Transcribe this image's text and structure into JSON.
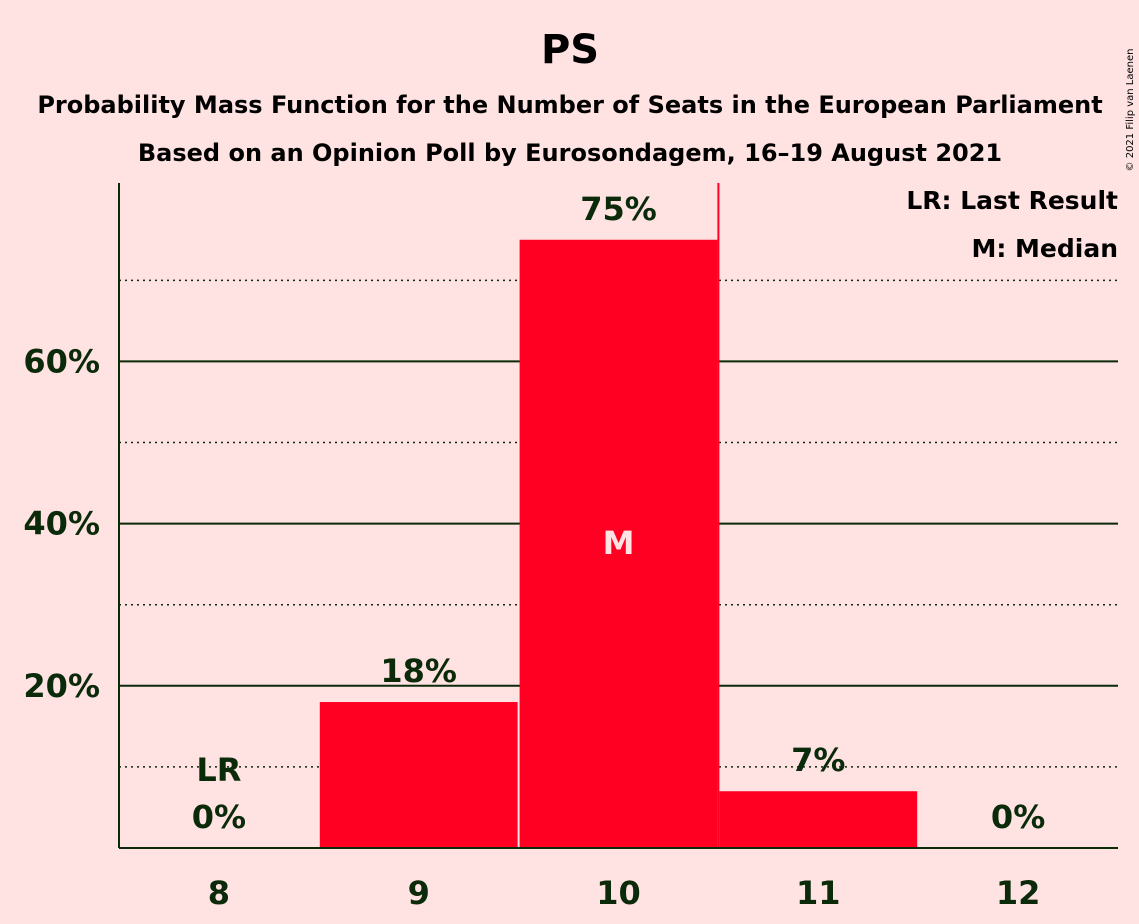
{
  "chart_data": {
    "type": "bar",
    "title": "PS",
    "subtitle_lines": [
      "Probability Mass Function for the Number of Seats in the European Parliament",
      "Based on an Opinion Poll by Eurosondagem, 16–19 August 2021"
    ],
    "categories": [
      "8",
      "9",
      "10",
      "11",
      "12"
    ],
    "values": [
      0,
      18,
      75,
      7,
      0
    ],
    "value_labels": [
      "0%",
      "18%",
      "75%",
      "7%",
      "0%"
    ],
    "ylim": [
      0,
      82
    ],
    "y_ticks_major": [
      20,
      40,
      60
    ],
    "y_tick_labels": [
      "20%",
      "40%",
      "60%"
    ],
    "y_ticks_minor": [
      10,
      30,
      50,
      70
    ],
    "grid": true,
    "last_result": {
      "category": "8",
      "label": "LR"
    },
    "median": {
      "category": "10",
      "label": "M"
    },
    "legend": [
      "LR: Last Result",
      "M: Median"
    ],
    "legend_position": "top-right",
    "copyright": "© 2021 Filip van Laenen",
    "colors": {
      "background": "#ffe2e2",
      "bar": "#ff0022",
      "text": "#0a2a0a",
      "median_text": "#ffe2e2"
    }
  }
}
